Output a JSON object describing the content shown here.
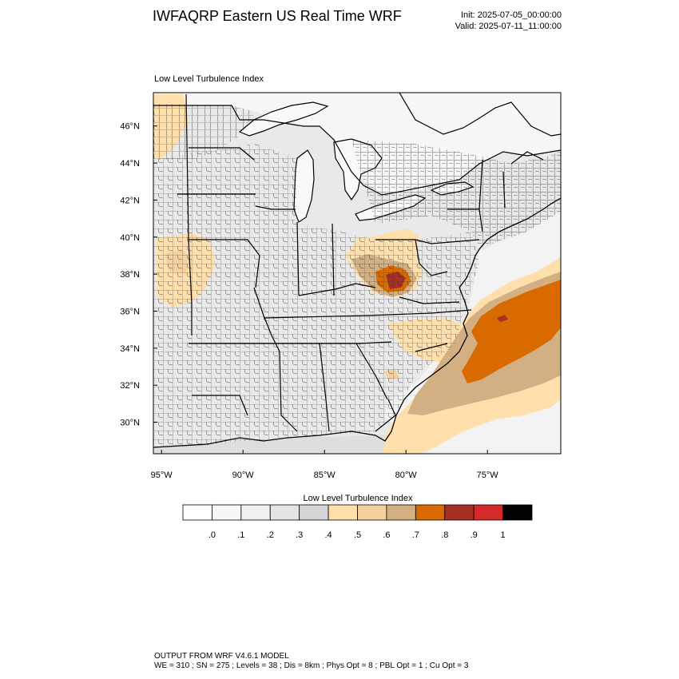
{
  "header": {
    "title": "IWFAQRP Eastern US Real Time WRF",
    "init": "Init: 2025-07-05_00:00:00",
    "valid": "Valid: 2025-07-11_11:00:00"
  },
  "panel": {
    "title": "Low Level Turbulence Index"
  },
  "map": {
    "extent": {
      "lon_min": -95.5,
      "lon_max": -70.5,
      "lat_min": 28.3,
      "lat_max": 47.8
    },
    "lat_ticks": [
      {
        "value": 30,
        "label": "30°N"
      },
      {
        "value": 32,
        "label": "32°N"
      },
      {
        "value": 34,
        "label": "34°N"
      },
      {
        "value": 36,
        "label": "36°N"
      },
      {
        "value": 38,
        "label": "38°N"
      },
      {
        "value": 40,
        "label": "40°N"
      },
      {
        "value": 42,
        "label": "42°N"
      },
      {
        "value": 44,
        "label": "44°N"
      },
      {
        "value": 46,
        "label": "46°N"
      }
    ],
    "lon_ticks": [
      {
        "value": -95,
        "label": "95°W"
      },
      {
        "value": -90,
        "label": "90°W"
      },
      {
        "value": -85,
        "label": "85°W"
      },
      {
        "value": -80,
        "label": "80°W"
      },
      {
        "value": -75,
        "label": "75°W"
      }
    ],
    "boundaries": [
      "states",
      "counties",
      "great-lakes",
      "coastline"
    ]
  },
  "colorbar": {
    "title": "Low Level Turbulence Index",
    "colors": [
      "#ffffff",
      "#f7f7f7",
      "#f0f0f0",
      "#e4e4e4",
      "#d6d6d6",
      "#ffe0ad",
      "#f5d19f",
      "#d2b084",
      "#d96a00",
      "#a63026",
      "#d42a2a",
      "#000000"
    ],
    "labels": [
      ".0",
      ".1",
      ".2",
      ".3",
      ".4",
      ".5",
      ".6",
      ".7",
      ".8",
      ".9",
      "1"
    ]
  },
  "footer": {
    "line1": "OUTPUT FROM WRF V4.6.1 MODEL",
    "line2": "WE = 310 ; SN = 275 ; Levels = 38 ; Dis = 8km ; Phys Opt = 8 ; PBL Opt = 1 ; Cu Opt = 3"
  }
}
